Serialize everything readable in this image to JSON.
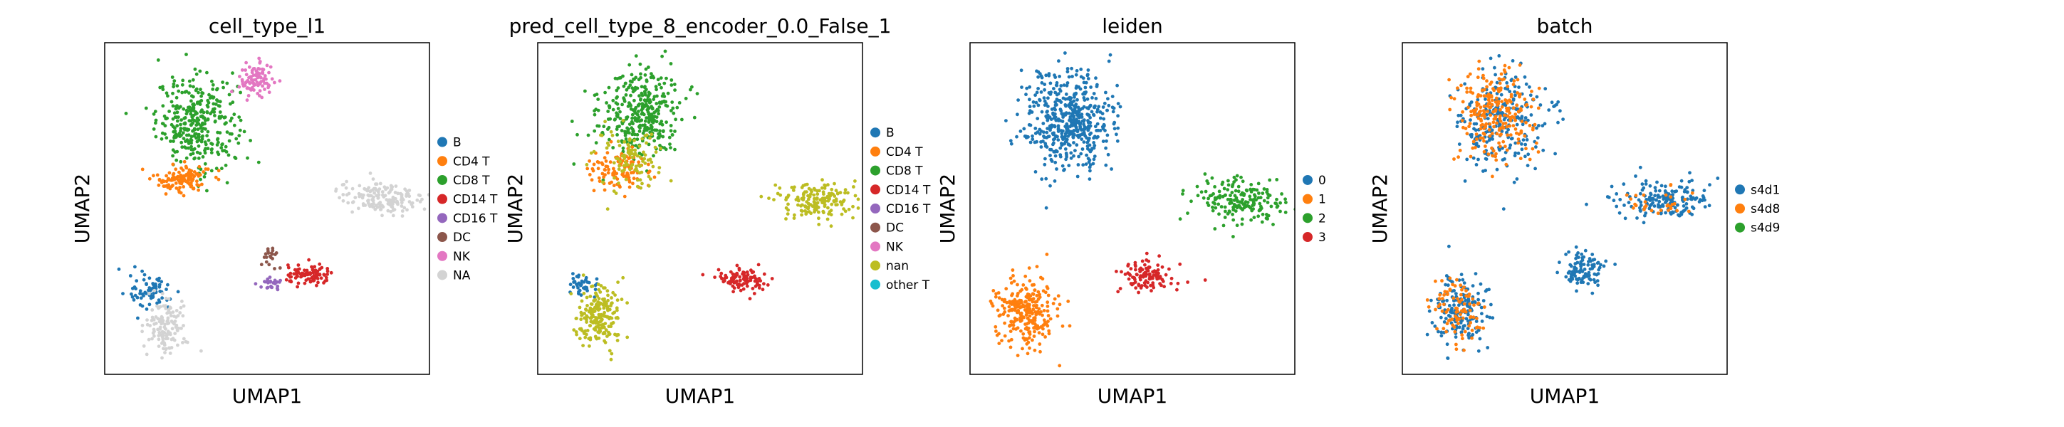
{
  "chart_data": [
    {
      "type": "scatter",
      "title": "cell_type_l1",
      "xlabel": "UMAP1",
      "ylabel": "UMAP2",
      "legend_position": "right",
      "categories": [
        "B",
        "CD4 T",
        "CD8 T",
        "CD14 T",
        "CD16 T",
        "DC",
        "NK",
        "NA"
      ],
      "colors": [
        "#1f77b4",
        "#ff7f0e",
        "#2ca02c",
        "#d62728",
        "#9467bd",
        "#8c564b",
        "#e377c2",
        "#d3d3d3"
      ],
      "clusters": [
        {
          "category": "CD8 T",
          "center": [
            3.0,
            8.0
          ],
          "spread": [
            1.2,
            1.3
          ],
          "n": 340
        },
        {
          "category": "NK",
          "center": [
            4.9,
            9.3
          ],
          "spread": [
            0.5,
            0.5
          ],
          "n": 90
        },
        {
          "category": "CD4 T",
          "center": [
            2.5,
            6.2
          ],
          "spread": [
            0.8,
            0.4
          ],
          "n": 120
        },
        {
          "category": "NA",
          "center": [
            9.0,
            5.6
          ],
          "spread": [
            1.3,
            0.5
          ],
          "n": 160
        },
        {
          "category": "CD14 T",
          "center": [
            6.6,
            3.1
          ],
          "spread": [
            0.7,
            0.3
          ],
          "n": 90
        },
        {
          "category": "CD16 T",
          "center": [
            5.4,
            2.9
          ],
          "spread": [
            0.3,
            0.2
          ],
          "n": 25
        },
        {
          "category": "DC",
          "center": [
            5.3,
            3.7
          ],
          "spread": [
            0.3,
            0.3
          ],
          "n": 20
        },
        {
          "category": "B",
          "center": [
            1.5,
            2.6
          ],
          "spread": [
            0.6,
            0.5
          ],
          "n": 70
        },
        {
          "category": "NA",
          "center": [
            2.0,
            1.5
          ],
          "spread": [
            0.6,
            0.8
          ],
          "n": 130
        }
      ]
    },
    {
      "type": "scatter",
      "title": "pred_cell_type_8_encoder_0.0_False_1",
      "xlabel": "UMAP1",
      "ylabel": "UMAP2",
      "legend_position": "right",
      "categories": [
        "B",
        "CD4 T",
        "CD8 T",
        "CD14 T",
        "CD16 T",
        "DC",
        "NK",
        "nan",
        "other T"
      ],
      "colors": [
        "#1f77b4",
        "#ff7f0e",
        "#2ca02c",
        "#d62728",
        "#9467bd",
        "#8c564b",
        "#e377c2",
        "#bcbd22",
        "#17becf"
      ],
      "clusters": [
        {
          "category": "CD8 T",
          "center": [
            3.3,
            8.3
          ],
          "spread": [
            1.2,
            1.3
          ],
          "n": 360
        },
        {
          "category": "CD4 T",
          "center": [
            2.6,
            6.5
          ],
          "spread": [
            0.9,
            0.5
          ],
          "n": 110
        },
        {
          "category": "nan",
          "center": [
            2.9,
            6.8
          ],
          "spread": [
            1.0,
            0.9
          ],
          "n": 100
        },
        {
          "category": "nan",
          "center": [
            9.0,
            5.5
          ],
          "spread": [
            1.3,
            0.5
          ],
          "n": 170
        },
        {
          "category": "CD14 T",
          "center": [
            6.6,
            3.0
          ],
          "spread": [
            0.7,
            0.3
          ],
          "n": 100
        },
        {
          "category": "B",
          "center": [
            1.5,
            2.8
          ],
          "spread": [
            0.5,
            0.4
          ],
          "n": 40
        },
        {
          "category": "nan",
          "center": [
            2.0,
            1.8
          ],
          "spread": [
            0.7,
            0.9
          ],
          "n": 200
        }
      ]
    },
    {
      "type": "scatter",
      "title": "leiden",
      "xlabel": "UMAP1",
      "ylabel": "UMAP2",
      "legend_position": "right",
      "categories": [
        "0",
        "1",
        "2",
        "3"
      ],
      "colors": [
        "#1f77b4",
        "#ff7f0e",
        "#2ca02c",
        "#d62728"
      ],
      "clusters": [
        {
          "category": "0",
          "center": [
            3.2,
            8.0
          ],
          "spread": [
            1.3,
            1.5
          ],
          "n": 500
        },
        {
          "category": "2",
          "center": [
            8.6,
            5.5
          ],
          "spread": [
            1.4,
            0.6
          ],
          "n": 190
        },
        {
          "category": "3",
          "center": [
            5.8,
            3.1
          ],
          "spread": [
            0.8,
            0.5
          ],
          "n": 110
        },
        {
          "category": "1",
          "center": [
            1.8,
            2.0
          ],
          "spread": [
            0.9,
            1.0
          ],
          "n": 260
        }
      ]
    },
    {
      "type": "scatter",
      "title": "batch",
      "xlabel": "UMAP1",
      "ylabel": "UMAP2",
      "legend_position": "right",
      "categories": [
        "s4d1",
        "s4d8",
        "s4d9"
      ],
      "colors": [
        "#1f77b4",
        "#ff7f0e",
        "#2ca02c"
      ],
      "clusters": [
        {
          "category": "s4d1",
          "center": [
            3.2,
            8.0
          ],
          "spread": [
            1.3,
            1.5
          ],
          "n": 260
        },
        {
          "category": "s4d8",
          "center": [
            3.0,
            8.2
          ],
          "spread": [
            1.1,
            1.3
          ],
          "n": 240
        },
        {
          "category": "s4d1",
          "center": [
            8.4,
            5.5
          ],
          "spread": [
            1.4,
            0.6
          ],
          "n": 170
        },
        {
          "category": "s4d8",
          "center": [
            8.2,
            5.4
          ],
          "spread": [
            1.0,
            0.5
          ],
          "n": 30
        },
        {
          "category": "s4d1",
          "center": [
            5.8,
            3.3
          ],
          "spread": [
            0.7,
            0.5
          ],
          "n": 100
        },
        {
          "category": "s4d1",
          "center": [
            1.8,
            2.0
          ],
          "spread": [
            0.8,
            1.0
          ],
          "n": 180
        },
        {
          "category": "s4d8",
          "center": [
            1.8,
            2.0
          ],
          "spread": [
            0.8,
            1.0
          ],
          "n": 90
        }
      ]
    }
  ]
}
